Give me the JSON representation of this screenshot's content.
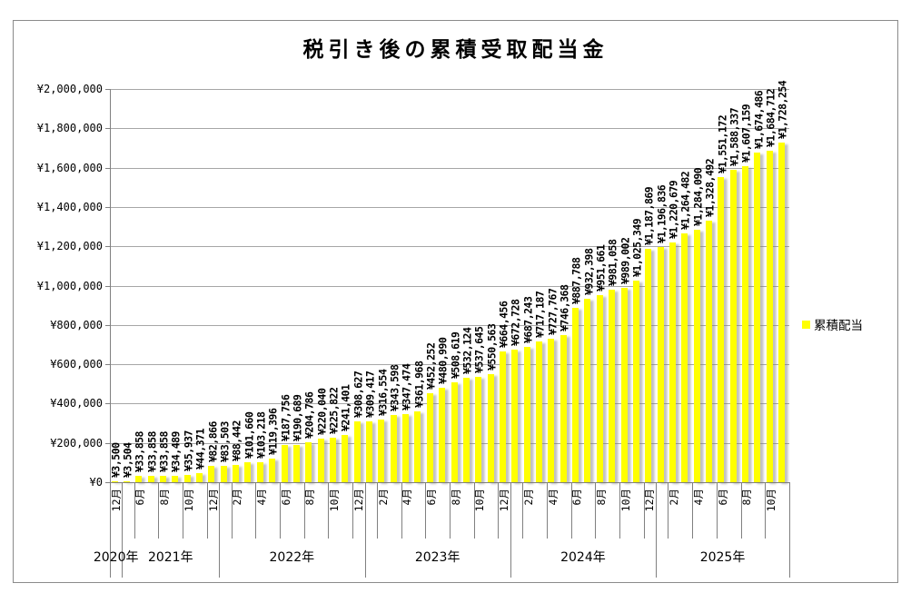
{
  "chart_data": {
    "type": "bar",
    "title": "税引き後の累積受取配当金",
    "legend": {
      "label": "累積配当",
      "swatch_color": "#ffff00",
      "position": "right"
    },
    "bar_color": "#ffff00",
    "grid": true,
    "ylim": [
      0,
      2000000
    ],
    "y_tick_interval": 200000,
    "y_tick_labels": [
      "¥0",
      "¥200,000",
      "¥400,000",
      "¥600,000",
      "¥800,000",
      "¥1,000,000",
      "¥1,200,000",
      "¥1,400,000",
      "¥1,600,000",
      "¥1,800,000",
      "¥2,000,000"
    ],
    "x_tick_labels": [
      "12月",
      "6月",
      "8月",
      "10月",
      "12月",
      "2月",
      "4月",
      "6月",
      "8月",
      "10月",
      "12月",
      "2月",
      "4月",
      "6月",
      "8月",
      "10月",
      "12月",
      "2月",
      "4月",
      "6月",
      "8月",
      "10月",
      "12月",
      "2月",
      "4月",
      "6月",
      "8月",
      "10月"
    ],
    "year_groups": [
      {
        "label": "2020年",
        "months": 1
      },
      {
        "label": "2021年",
        "months": 8
      },
      {
        "label": "2022年",
        "months": 12
      },
      {
        "label": "2023年",
        "months": 12
      },
      {
        "label": "2024年",
        "months": 12
      },
      {
        "label": "2025年",
        "months": 11
      }
    ],
    "series": [
      {
        "name": "累積配当",
        "values": [
          3500,
          3504,
          33858,
          33858,
          33858,
          34489,
          35937,
          44371,
          82866,
          83503,
          88442,
          101660,
          103218,
          119396,
          187756,
          190689,
          204786,
          220040,
          225822,
          241401,
          308627,
          309417,
          316554,
          343598,
          347474,
          361968,
          452252,
          480990,
          508619,
          532124,
          537645,
          550563,
          664456,
          672728,
          687243,
          717187,
          727767,
          746368,
          887788,
          932398,
          951661,
          981058,
          989002,
          1025349,
          1187869,
          1196836,
          1220679,
          1264482,
          1284090,
          1328492,
          1551172,
          1588337,
          1607159,
          1674486,
          1684712,
          1728254
        ],
        "data_labels": [
          "¥3,500",
          "¥3,504",
          "¥33,858",
          "¥33,858",
          "¥33,858",
          "¥34,489",
          "¥35,937",
          "¥44,371",
          "¥82,866",
          "¥83,503",
          "¥88,442",
          "¥101,660",
          "¥103,218",
          "¥119,396",
          "¥187,756",
          "¥190,689",
          "¥204,786",
          "¥220,040",
          "¥225,822",
          "¥241,401",
          "¥308,627",
          "¥309,417",
          "¥316,554",
          "¥343,598",
          "¥347,474",
          "¥361,968",
          "¥452,252",
          "¥480,990",
          "¥508,619",
          "¥532,124",
          "¥537,645",
          "¥550,563",
          "¥664,456",
          "¥672,728",
          "¥687,243",
          "¥717,187",
          "¥727,767",
          "¥746,368",
          "¥887,788",
          "¥932,398",
          "¥951,661",
          "¥981,058",
          "¥989,002",
          "¥1,025,349",
          "¥1,187,869",
          "¥1,196,836",
          "¥1,220,679",
          "¥1,264,482",
          "¥1,284,090",
          "¥1,328,492",
          "¥1,551,172",
          "¥1,588,337",
          "¥1,607,159",
          "¥1,674,486",
          "¥1,684,712",
          "¥1,728,254"
        ]
      }
    ]
  }
}
